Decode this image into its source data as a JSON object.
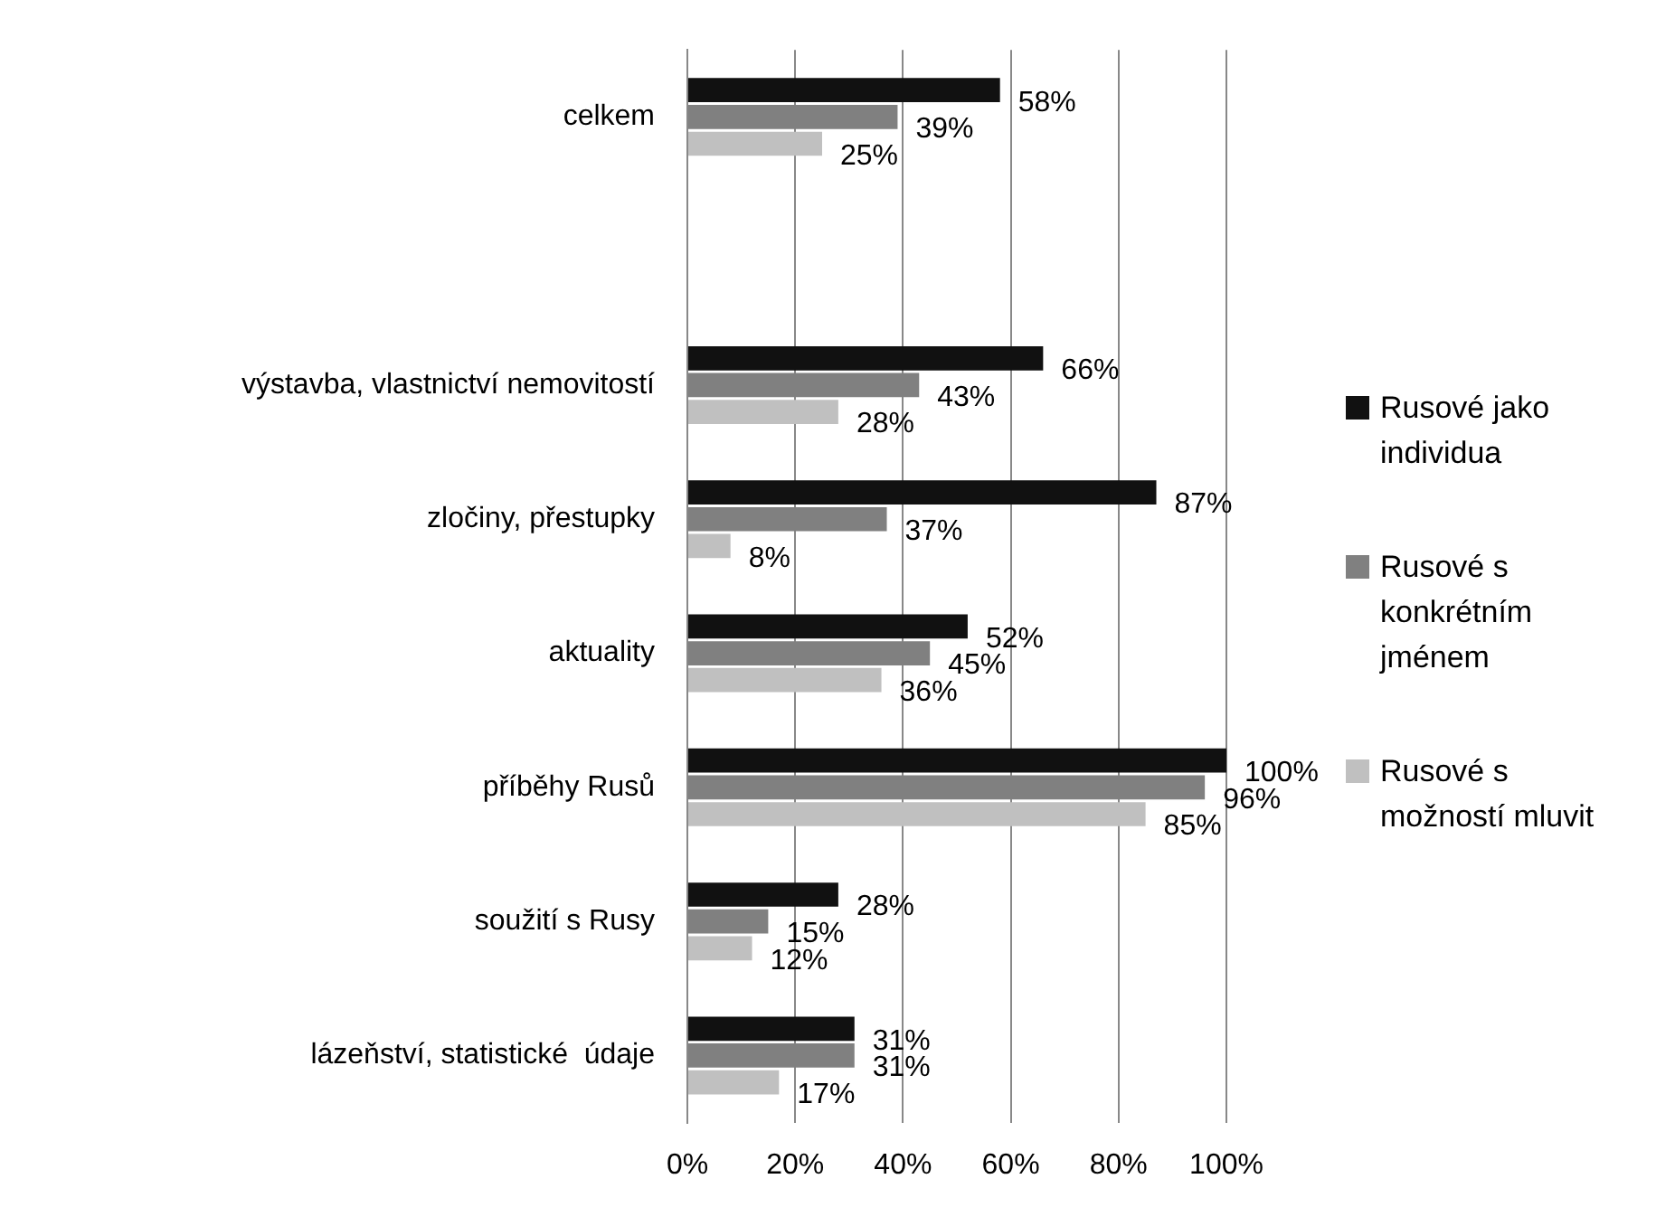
{
  "chart_data": {
    "type": "bar",
    "orientation": "horizontal",
    "categories": [
      "celkem",
      null,
      "výstavba, vlastnictví nemovitostí",
      "zločiny, přestupky",
      "aktuality",
      "příběhy Rusů",
      "soužití s Rusy",
      "lázeňství, statistické  údaje"
    ],
    "series": [
      {
        "name": "Rusové jako individua",
        "color": "#111111",
        "values": [
          58,
          null,
          66,
          87,
          52,
          100,
          28,
          31
        ],
        "value_labels": [
          "58%",
          null,
          "66%",
          "87%",
          "52%",
          "100%",
          "28%",
          "31%"
        ]
      },
      {
        "name": "Rusové s konkrétním jménem",
        "color": "#808080",
        "values": [
          39,
          null,
          43,
          37,
          45,
          96,
          15,
          31
        ],
        "value_labels": [
          "39%",
          null,
          "43%",
          "37%",
          "45%",
          "96%",
          "15%",
          "31%"
        ]
      },
      {
        "name": "Rusové s možností mluvit",
        "color": "#c0c0c0",
        "values": [
          25,
          null,
          28,
          8,
          36,
          85,
          12,
          17
        ],
        "value_labels": [
          "25%",
          null,
          "28%",
          "8%",
          "36%",
          "85%",
          "12%",
          "17%"
        ]
      }
    ],
    "xlim": [
      0,
      100
    ],
    "xticks": [
      {
        "value": 0,
        "label": "0%"
      },
      {
        "value": 20,
        "label": "20%"
      },
      {
        "value": 40,
        "label": "40%"
      },
      {
        "value": 60,
        "label": "60%"
      },
      {
        "value": 80,
        "label": "80%"
      },
      {
        "value": 100,
        "label": "100%"
      }
    ],
    "grid": "x",
    "legend": "right"
  }
}
